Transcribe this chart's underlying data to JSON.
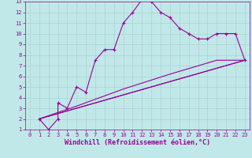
{
  "background_color": "#c0e8e8",
  "grid_color": "#aacccc",
  "line_color": "#990099",
  "xlabel": "Windchill (Refroidissement éolien,°C)",
  "xlim": [
    -0.5,
    23.5
  ],
  "ylim": [
    1,
    13
  ],
  "xticks": [
    0,
    1,
    2,
    3,
    4,
    5,
    6,
    7,
    8,
    9,
    10,
    11,
    12,
    13,
    14,
    15,
    16,
    17,
    18,
    19,
    20,
    21,
    22,
    23
  ],
  "yticks": [
    1,
    2,
    3,
    4,
    5,
    6,
    7,
    8,
    9,
    10,
    11,
    12,
    13
  ],
  "curve1_x": [
    1,
    2,
    3,
    3,
    4,
    5,
    6,
    7,
    8,
    9,
    10,
    11,
    12,
    13,
    14,
    15,
    16,
    17,
    18,
    19,
    20,
    21,
    22,
    23
  ],
  "curve1_y": [
    2,
    1,
    2,
    3.5,
    3,
    5,
    4.5,
    7.5,
    8.5,
    8.5,
    11,
    12,
    13.2,
    13,
    12,
    11.5,
    10.5,
    10,
    9.5,
    9.5,
    10,
    10,
    10,
    7.5
  ],
  "line1_x": [
    1,
    23
  ],
  "line1_y": [
    2,
    7.5
  ],
  "line2_x": [
    1,
    23
  ],
  "line2_y": [
    2,
    7.5
  ],
  "curve2_x": [
    1,
    5,
    10,
    15,
    20,
    23
  ],
  "curve2_y": [
    2,
    3.2,
    4.8,
    6.2,
    7.5,
    7.5
  ],
  "fontsize_label": 6,
  "fontsize_tick": 5,
  "linewidth": 0.8,
  "markersize": 3
}
